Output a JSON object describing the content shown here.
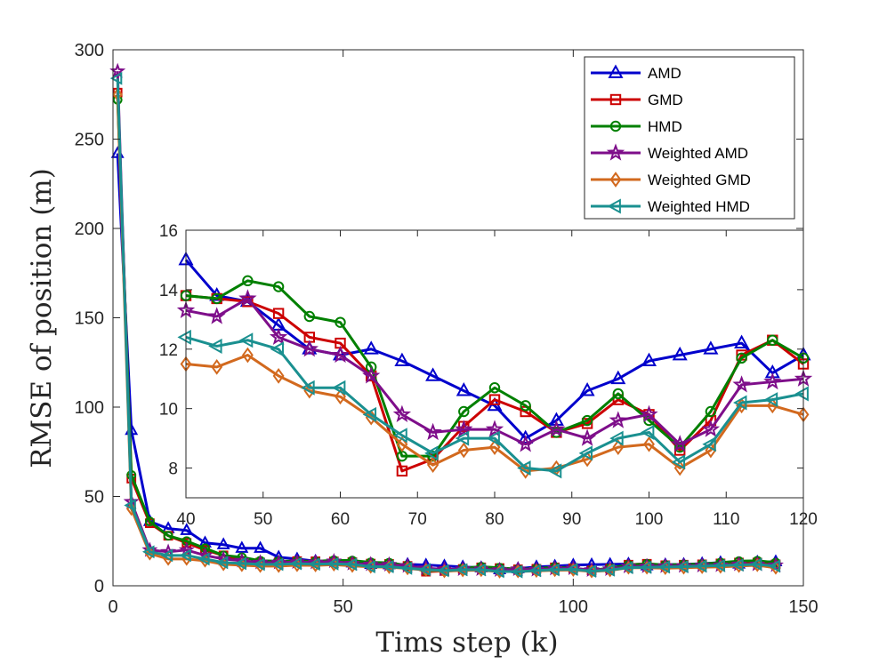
{
  "chart_data": {
    "type": "line",
    "main": {
      "xlabel": "Tims step (k)",
      "ylabel": "RMSE of position (m)",
      "xlim": [
        0,
        150
      ],
      "ylim": [
        0,
        300
      ],
      "xticks": [
        0,
        50,
        100,
        150
      ],
      "yticks": [
        0,
        50,
        100,
        150,
        200,
        250,
        300
      ],
      "grid": false,
      "legend_position": "top-right",
      "x": [
        1,
        4,
        8,
        12,
        16,
        20,
        24,
        28,
        32,
        36,
        40,
        44,
        48,
        52,
        56,
        60,
        64,
        68,
        72,
        76,
        80,
        84,
        88,
        92,
        96,
        100,
        104,
        108,
        112,
        116,
        120,
        124,
        128,
        132,
        136,
        140,
        144
      ],
      "series": [
        {
          "name": "AMD",
          "color": "#0000CC",
          "marker": "triangle-up",
          "values": [
            242,
            87,
            36,
            32,
            31,
            24,
            23,
            21,
            21,
            16,
            15,
            13.8,
            13.6,
            12.8,
            12,
            11.8,
            12,
            11.6,
            11.1,
            10.6,
            10.1,
            9,
            9.6,
            10.6,
            11,
            11.6,
            11.8,
            12,
            12.2,
            11.2,
            11.8,
            12,
            12.4,
            13,
            12.2,
            13.3,
            13.5
          ]
        },
        {
          "name": "GMD",
          "color": "#CC0000",
          "marker": "square",
          "values": [
            276,
            60,
            35,
            28,
            24,
            20,
            17,
            14,
            13,
            13,
            13.8,
            13.7,
            13.6,
            13.2,
            12.4,
            12.2,
            11.1,
            7.9,
            8.3,
            9.4,
            10.3,
            9.9,
            9.2,
            9.5,
            10.3,
            9.8,
            8.6,
            9.6,
            11.8,
            12.3,
            11.5,
            11.8,
            12,
            12.5,
            13,
            13,
            12
          ]
        },
        {
          "name": "HMD",
          "color": "#008000",
          "marker": "circle",
          "values": [
            272,
            62,
            36,
            28,
            25,
            21,
            17,
            16,
            14,
            13.8,
            13.8,
            13.7,
            14.3,
            14.1,
            13.1,
            12.9,
            11.4,
            8.4,
            8.4,
            9.9,
            10.7,
            10.1,
            9.2,
            9.6,
            10.5,
            9.6,
            8.7,
            9.9,
            11.7,
            12.3,
            11.7,
            12,
            12.2,
            13,
            13.8,
            14,
            13
          ]
        },
        {
          "name": "Weighted AMD",
          "color": "#7E0E8A",
          "marker": "star",
          "values": [
            288,
            47,
            20,
            19,
            20,
            17,
            15,
            14,
            13,
            13,
            13.3,
            13.1,
            13.7,
            12.4,
            12,
            11.8,
            11.1,
            9.8,
            9.2,
            9.3,
            9.3,
            8.8,
            9.3,
            9,
            9.6,
            9.8,
            8.8,
            9.3,
            10.8,
            10.9,
            11,
            11.1,
            11.3,
            11.5,
            12,
            12,
            11.5
          ]
        },
        {
          "name": "Weighted GMD",
          "color": "#D2691E",
          "marker": "diamond",
          "values": [
            275,
            43,
            18,
            15,
            15,
            14,
            12,
            11.5,
            11,
            11,
            11.5,
            11.4,
            11.8,
            11.1,
            10.6,
            10.4,
            9.7,
            8.8,
            8.1,
            8.6,
            8.7,
            7.9,
            8,
            8.3,
            8.7,
            8.8,
            8,
            8.6,
            10.1,
            10.1,
            9.8,
            10.1,
            10.4,
            10.6,
            11,
            11.5,
            10
          ]
        },
        {
          "name": "Weighted HMD",
          "color": "#1A9090",
          "marker": "triangle-left",
          "values": [
            284,
            45,
            19,
            17,
            17,
            15,
            13,
            12.5,
            12,
            12,
            12.4,
            12.1,
            12.3,
            12,
            10.7,
            10.7,
            9.8,
            9.1,
            8.5,
            9,
            9,
            8,
            7.9,
            8.5,
            9,
            9.2,
            8.2,
            8.8,
            10.2,
            10.3,
            10.5,
            10.7,
            11,
            11.3,
            11.6,
            12,
            11
          ]
        }
      ]
    },
    "inset": {
      "xlim": [
        40,
        120
      ],
      "ylim": [
        7,
        16
      ],
      "xticks": [
        40,
        50,
        60,
        70,
        80,
        90,
        100,
        110,
        120
      ],
      "yticks": [
        8,
        10,
        12,
        14,
        16
      ],
      "x": [
        40,
        44,
        48,
        52,
        56,
        60,
        64,
        68,
        72,
        76,
        80,
        84,
        88,
        92,
        96,
        100,
        104,
        108,
        112,
        116,
        120
      ]
    }
  }
}
